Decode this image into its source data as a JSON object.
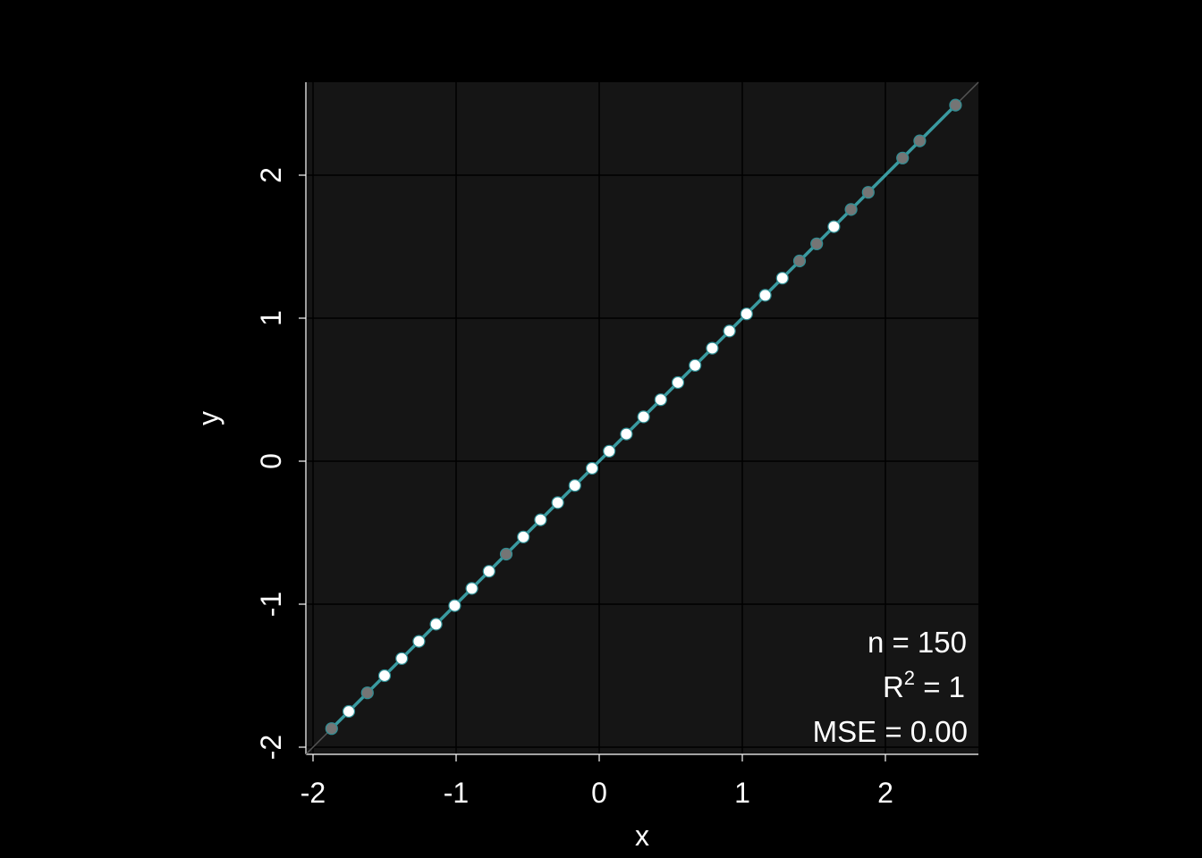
{
  "chart_data": {
    "type": "scatter",
    "title": "",
    "xlabel": "x",
    "ylabel": "y",
    "xlim": [
      -2.05,
      2.65
    ],
    "ylim": [
      -2.05,
      2.65
    ],
    "xticks": [
      -2,
      -1,
      0,
      1,
      2
    ],
    "yticks": [
      -2,
      -1,
      0,
      1,
      2
    ],
    "x_tick_labels": [
      "-2",
      "-1",
      "0",
      "1",
      "2"
    ],
    "y_tick_labels": [
      "-2",
      "-1",
      "0",
      "1",
      "2"
    ],
    "grid": true,
    "identity_line": true,
    "points": [
      {
        "x": -1.87,
        "y": -1.87,
        "shade": "gray"
      },
      {
        "x": -1.75,
        "y": -1.75,
        "shade": "white"
      },
      {
        "x": -1.62,
        "y": -1.62,
        "shade": "gray"
      },
      {
        "x": -1.5,
        "y": -1.5,
        "shade": "white"
      },
      {
        "x": -1.38,
        "y": -1.38,
        "shade": "white"
      },
      {
        "x": -1.26,
        "y": -1.26,
        "shade": "white"
      },
      {
        "x": -1.14,
        "y": -1.14,
        "shade": "white"
      },
      {
        "x": -1.01,
        "y": -1.01,
        "shade": "white"
      },
      {
        "x": -0.89,
        "y": -0.89,
        "shade": "white"
      },
      {
        "x": -0.77,
        "y": -0.77,
        "shade": "white"
      },
      {
        "x": -0.65,
        "y": -0.65,
        "shade": "gray"
      },
      {
        "x": -0.53,
        "y": -0.53,
        "shade": "white"
      },
      {
        "x": -0.41,
        "y": -0.41,
        "shade": "white"
      },
      {
        "x": -0.29,
        "y": -0.29,
        "shade": "white"
      },
      {
        "x": -0.17,
        "y": -0.17,
        "shade": "white"
      },
      {
        "x": -0.05,
        "y": -0.05,
        "shade": "white"
      },
      {
        "x": 0.07,
        "y": 0.07,
        "shade": "white"
      },
      {
        "x": 0.19,
        "y": 0.19,
        "shade": "white"
      },
      {
        "x": 0.31,
        "y": 0.31,
        "shade": "white"
      },
      {
        "x": 0.43,
        "y": 0.43,
        "shade": "white"
      },
      {
        "x": 0.55,
        "y": 0.55,
        "shade": "white"
      },
      {
        "x": 0.67,
        "y": 0.67,
        "shade": "white"
      },
      {
        "x": 0.79,
        "y": 0.79,
        "shade": "white"
      },
      {
        "x": 0.91,
        "y": 0.91,
        "shade": "white"
      },
      {
        "x": 1.03,
        "y": 1.03,
        "shade": "white"
      },
      {
        "x": 1.16,
        "y": 1.16,
        "shade": "white"
      },
      {
        "x": 1.28,
        "y": 1.28,
        "shade": "white"
      },
      {
        "x": 1.4,
        "y": 1.4,
        "shade": "gray"
      },
      {
        "x": 1.52,
        "y": 1.52,
        "shade": "gray"
      },
      {
        "x": 1.64,
        "y": 1.64,
        "shade": "white"
      },
      {
        "x": 1.76,
        "y": 1.76,
        "shade": "gray"
      },
      {
        "x": 1.88,
        "y": 1.88,
        "shade": "gray"
      },
      {
        "x": 2.12,
        "y": 2.12,
        "shade": "gray"
      },
      {
        "x": 2.24,
        "y": 2.24,
        "shade": "gray"
      },
      {
        "x": 2.49,
        "y": 2.49,
        "shade": "gray"
      }
    ],
    "fit_line": {
      "from": [
        -1.87,
        -1.87
      ],
      "to": [
        2.49,
        2.49
      ]
    },
    "annotation": {
      "n_text": "n = 150",
      "r2_prefix": "R",
      "r2_sup": "2",
      "r2_suffix": " = 1",
      "mse_text": "MSE = 0.00"
    },
    "colors": {
      "page_background": "#000000",
      "panel_background": "#151515",
      "grid": "#000000",
      "fit_line": "#3a9aa0",
      "identity_line": "#555555",
      "point_white": "#ffffff",
      "point_gray": "#757575",
      "point_stroke": "#2f8f95",
      "text": "#ffffff"
    }
  }
}
